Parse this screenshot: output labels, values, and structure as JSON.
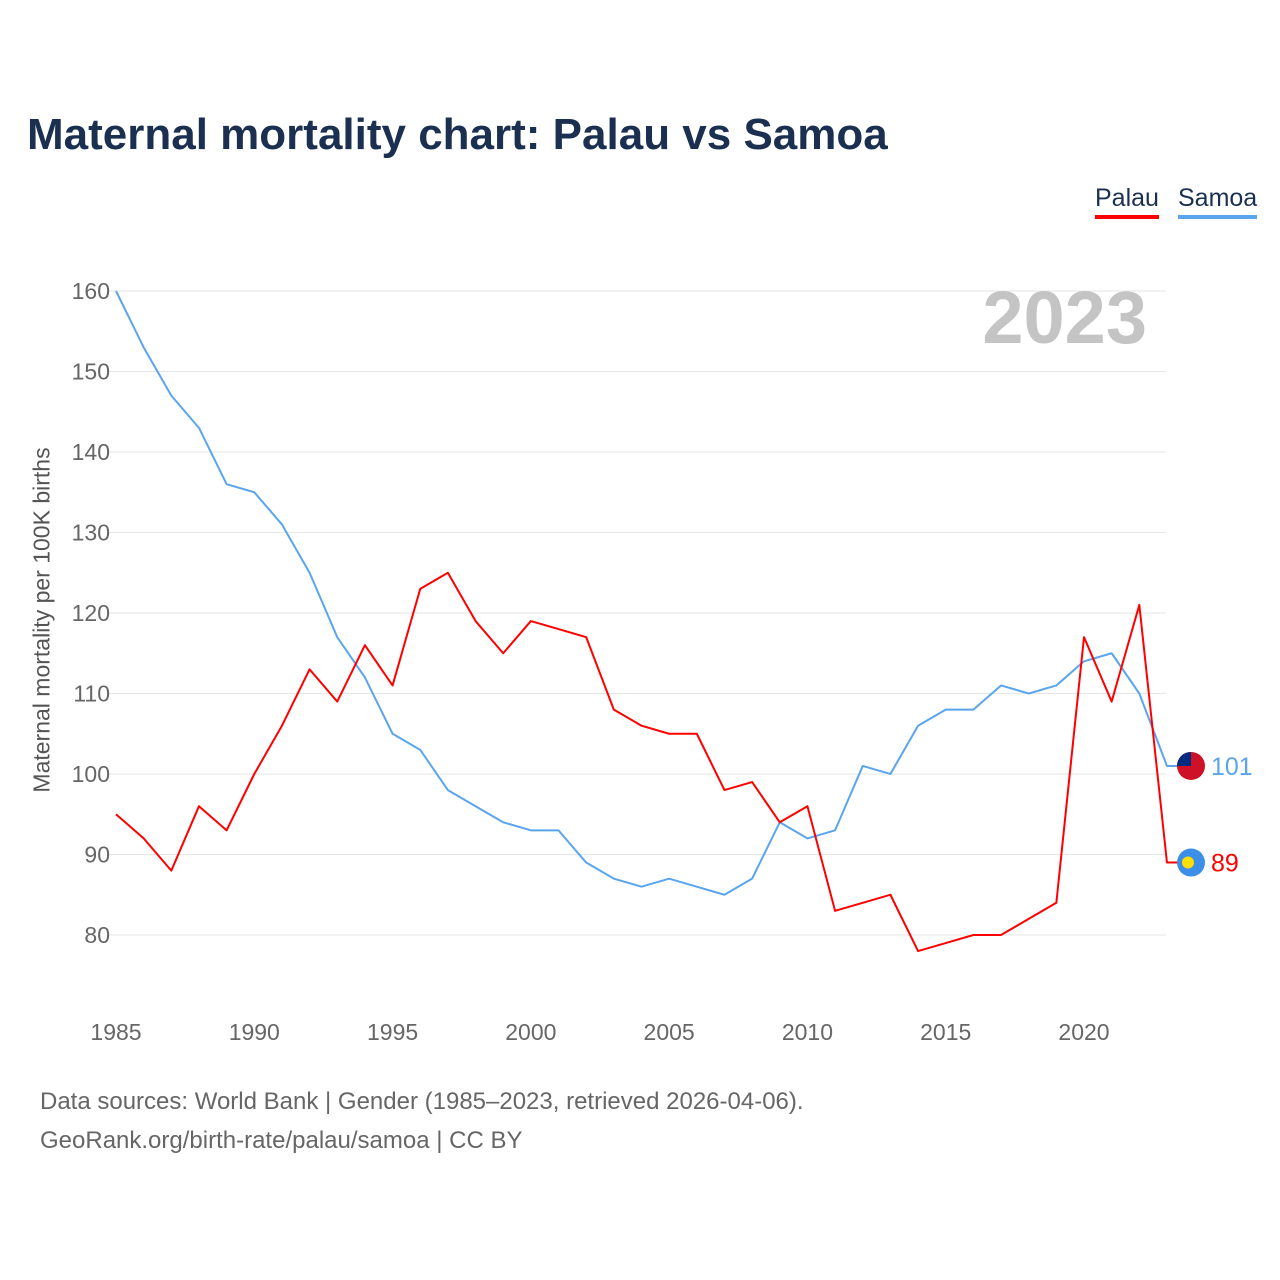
{
  "chart_data": {
    "type": "line",
    "title": "Maternal mortality chart: Palau vs Samoa",
    "ylabel": "Maternal mortality per 100K births",
    "xlabel": "",
    "ylim": [
      72,
      162
    ],
    "xlim": [
      1985,
      2023
    ],
    "yticks": [
      80,
      90,
      100,
      110,
      120,
      130,
      140,
      150,
      160
    ],
    "xticks": [
      1985,
      1990,
      1995,
      2000,
      2005,
      2010,
      2015,
      2020
    ],
    "grid": true,
    "legend_position": "top-right",
    "current_year": "2023",
    "x": [
      1985,
      1986,
      1987,
      1988,
      1989,
      1990,
      1991,
      1992,
      1993,
      1994,
      1995,
      1996,
      1997,
      1998,
      1999,
      2000,
      2001,
      2002,
      2003,
      2004,
      2005,
      2006,
      2007,
      2008,
      2009,
      2010,
      2011,
      2012,
      2013,
      2014,
      2015,
      2016,
      2017,
      2018,
      2019,
      2020,
      2021,
      2022,
      2023
    ],
    "series": [
      {
        "name": "Palau",
        "color": "#ff0000",
        "end_label": "89",
        "values": [
          95,
          92,
          88,
          96,
          93,
          100,
          106,
          113,
          109,
          116,
          111,
          123,
          125,
          119,
          115,
          119,
          118,
          117,
          108,
          106,
          105,
          105,
          98,
          99,
          94,
          96,
          83,
          84,
          85,
          78,
          79,
          80,
          80,
          82,
          84,
          117,
          109,
          121,
          89
        ]
      },
      {
        "name": "Samoa",
        "color": "#5aa5ee",
        "end_label": "101",
        "values": [
          160,
          153,
          147,
          143,
          136,
          135,
          131,
          125,
          117,
          112,
          105,
          103,
          98,
          96,
          94,
          93,
          93,
          89,
          87,
          86,
          87,
          86,
          85,
          87,
          94,
          92,
          93,
          101,
          100,
          106,
          108,
          108,
          111,
          110,
          111,
          114,
          115,
          110,
          101
        ]
      }
    ]
  },
  "footer": {
    "source": "Data sources: World Bank | Gender (1985–2023, retrieved 2026-04-06).",
    "credit": "GeoRank.org/birth-rate/palau/samoa | CC BY"
  }
}
